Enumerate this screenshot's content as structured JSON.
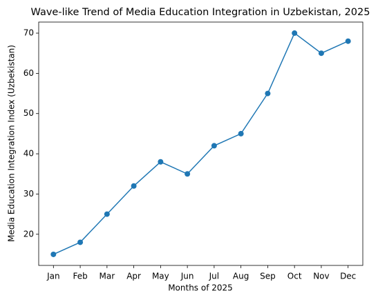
{
  "chart_data": {
    "type": "line",
    "title": "Wave-like Trend of Media Education Integration in Uzbekistan, 2025",
    "x_label": "Months of 2025",
    "y_label": "Media Education Integration Index (Uzbekistan)",
    "categories": [
      "Jan",
      "Feb",
      "Mar",
      "Apr",
      "May",
      "Jun",
      "Jul",
      "Aug",
      "Sep",
      "Oct",
      "Nov",
      "Dec"
    ],
    "series": [
      {
        "name": "Media Education Integration Index",
        "color": "#1f77b4",
        "values": [
          15,
          18,
          25,
          32,
          38,
          35,
          42,
          45,
          55,
          70,
          65,
          68
        ]
      }
    ],
    "ylim": [
      12.25,
      72.75
    ],
    "yticks": [
      20,
      30,
      40,
      50,
      60,
      70
    ],
    "grid": false
  }
}
